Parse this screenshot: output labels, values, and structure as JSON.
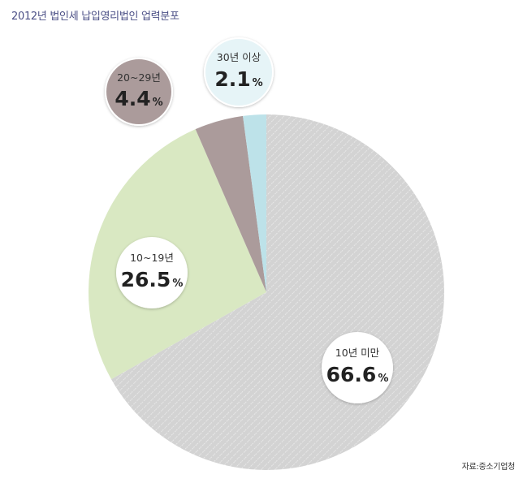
{
  "title": "2012년 법인세 납입영리법인 업력분포",
  "source": "자료:중소기업청",
  "chart_data": {
    "type": "pie",
    "title": "2012년 법인세 납입영리법인 업력분포",
    "slices": [
      {
        "label": "10년 미만",
        "value": 66.6,
        "value_text": "66.6",
        "unit": "%",
        "color": "#d3d3d3",
        "pattern": "hatched"
      },
      {
        "label": "10~19년",
        "value": 26.5,
        "value_text": "26.5",
        "unit": "%",
        "color": "#d9e8c2",
        "pattern": "solid"
      },
      {
        "label": "20~29년",
        "value": 4.4,
        "value_text": "4.4",
        "unit": "%",
        "color": "#ab9b9b",
        "pattern": "solid"
      },
      {
        "label": "30년 이상",
        "value": 2.1,
        "value_text": "2.1",
        "unit": "%",
        "color": "#bde2e9",
        "pattern": "solid"
      }
    ],
    "label_bubble_colors": [
      "#ffffff",
      "#ffffff",
      "#ab9b9b",
      "#e6f4f7"
    ]
  }
}
